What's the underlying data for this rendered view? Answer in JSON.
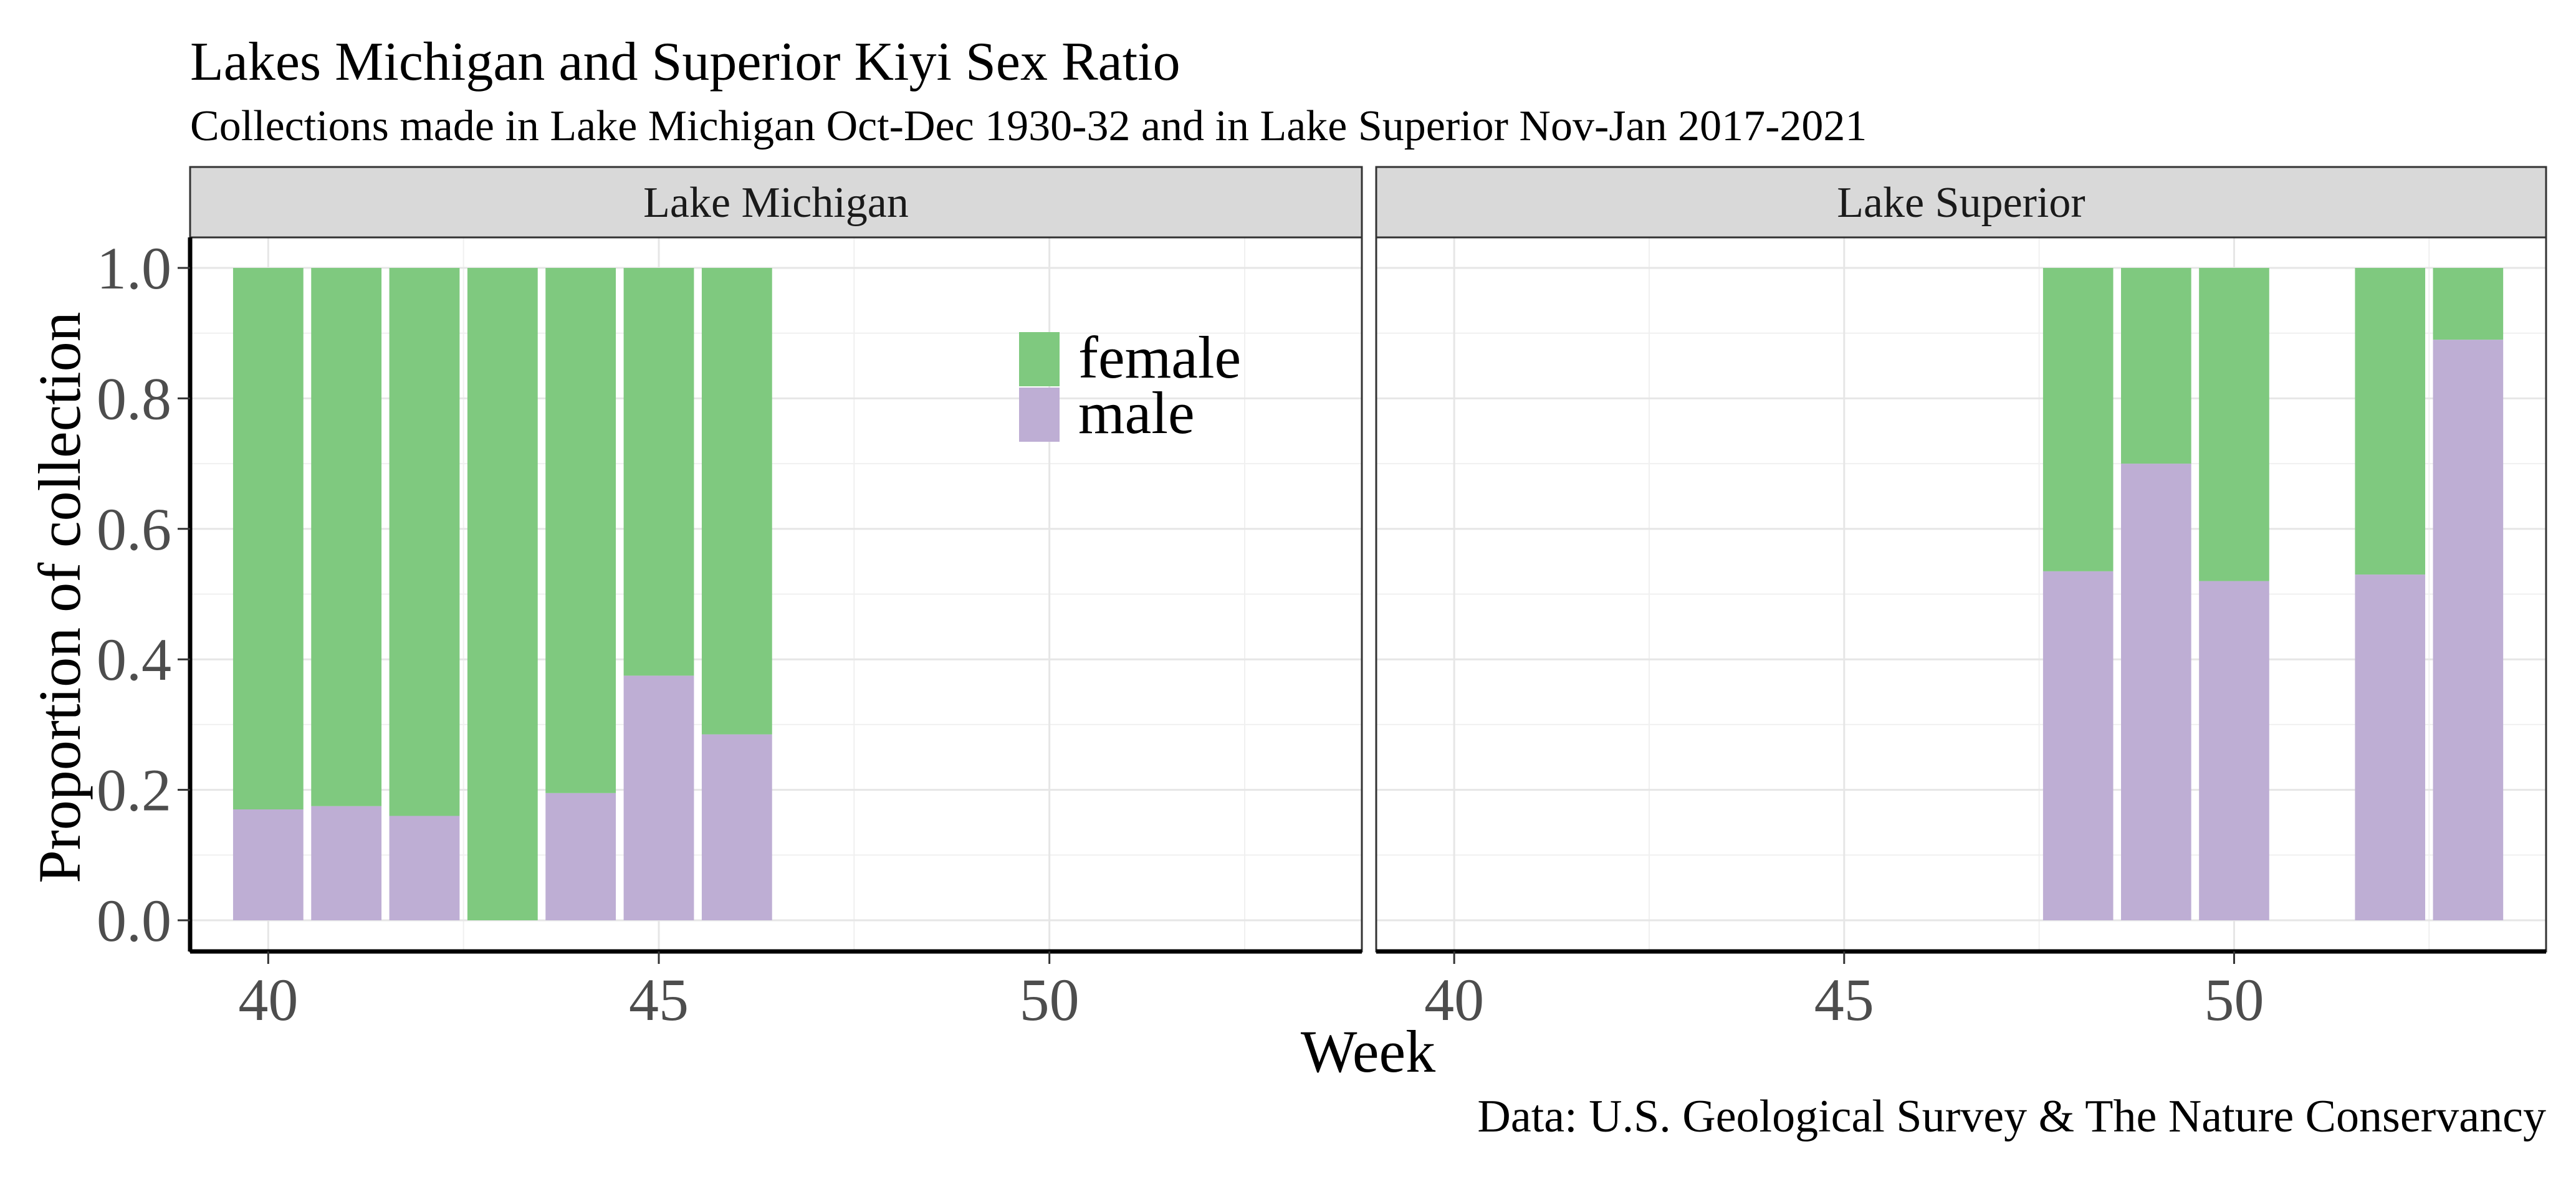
{
  "chart_data": {
    "type": "bar",
    "stacked": true,
    "title": "Lakes Michigan and Superior Kiyi Sex Ratio",
    "subtitle": "Collections made in Lake Michigan Oct-Dec 1930-32 and in Lake Superior Nov-Jan 2017-2021",
    "xlabel": "Week",
    "ylabel": "Proportion of collection",
    "caption": "Data: U.S. Geological Survey & The Nature Conservancy",
    "xlim": [
      39,
      54
    ],
    "ylim": [
      0,
      1
    ],
    "x_ticks": [
      40,
      45,
      50
    ],
    "y_ticks": [
      0.0,
      0.2,
      0.4,
      0.6,
      0.8,
      1.0
    ],
    "y_tick_labels": [
      "0.0",
      "0.2",
      "0.4",
      "0.6",
      "0.8",
      "1.0"
    ],
    "grid": true,
    "legend": {
      "position": "inside-top-right-of-first-panel",
      "entries": [
        {
          "name": "female",
          "color": "#7fc97f"
        },
        {
          "name": "male",
          "color": "#beaed4"
        }
      ]
    },
    "panels": [
      {
        "name": "Lake Michigan",
        "weeks": [
          40,
          41,
          42,
          43,
          44,
          45,
          46
        ],
        "male": [
          0.17,
          0.175,
          0.16,
          0.0,
          0.195,
          0.375,
          0.285
        ],
        "female": [
          0.83,
          0.825,
          0.84,
          1.0,
          0.805,
          0.625,
          0.715
        ]
      },
      {
        "name": "Lake Superior",
        "weeks": [
          48,
          49,
          50,
          52,
          53
        ],
        "male": [
          0.535,
          0.7,
          0.52,
          0.53,
          0.89
        ],
        "female": [
          0.465,
          0.3,
          0.48,
          0.47,
          0.11
        ]
      }
    ]
  }
}
